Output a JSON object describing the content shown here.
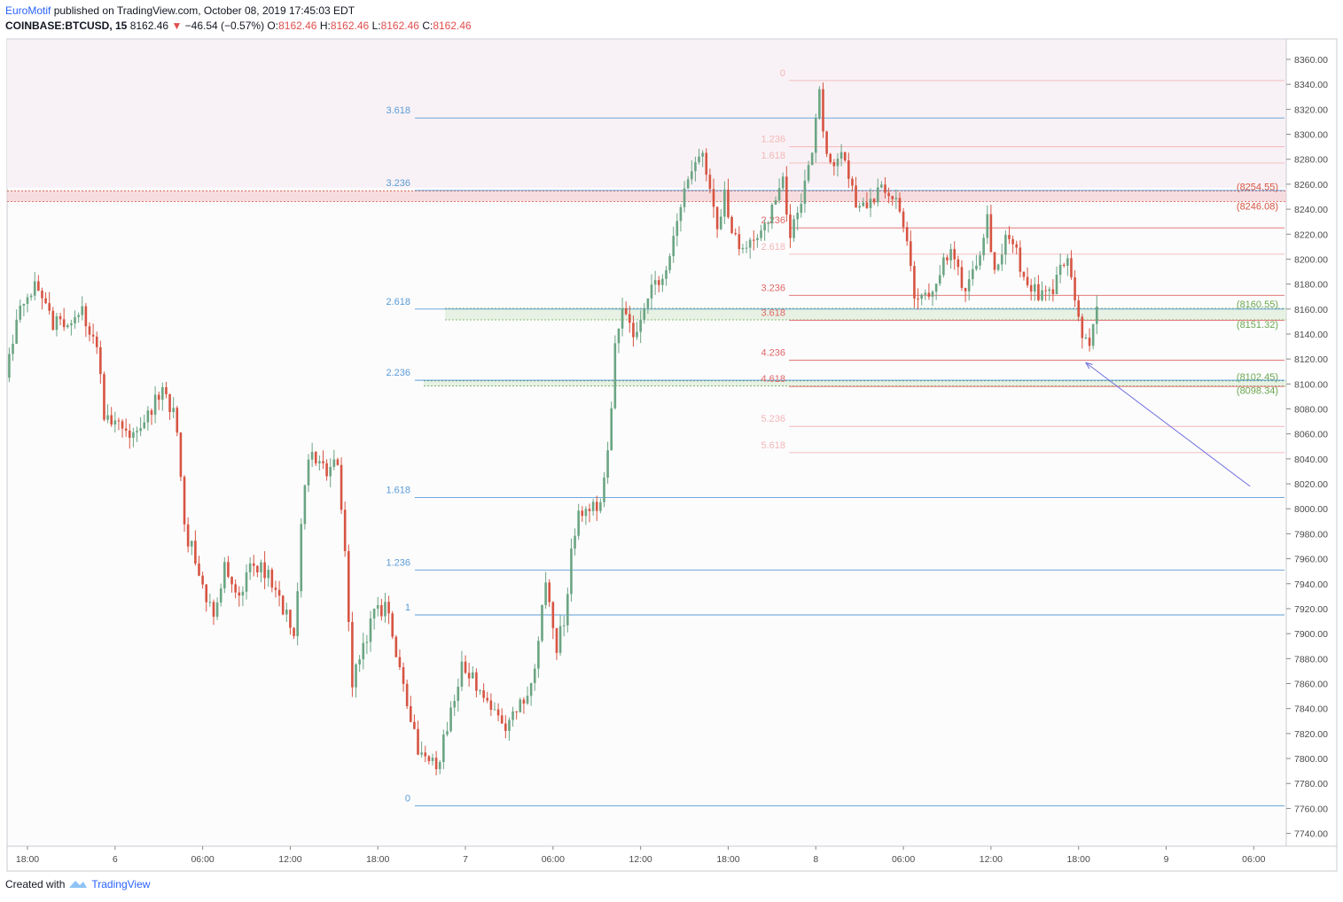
{
  "header": {
    "author": "EuroMotif",
    "published_text": "published on TradingView.com, October 08, 2019 17:45:03 EDT",
    "symbol": "COINBASE:BTCUSD, 15",
    "last": "8162.46",
    "change": "−46.54 (−0.57%)",
    "o_label": "O:",
    "o": "8162.46",
    "h_label": "H:",
    "h": "8162.46",
    "l_label": "L:",
    "l": "8162.46",
    "c_label": "C:",
    "c": "8162.46"
  },
  "footer": {
    "created_with": "Created with",
    "brand": "TradingView"
  },
  "colors": {
    "up": "#6ba583",
    "down": "#d75442",
    "fib_blue": "#5b9cd6",
    "fib_red": "#e06666",
    "fib_red_light": "#f4b6b6",
    "zone_red": "#f3c6cc",
    "zone_green": "#d9ead3",
    "arrow": "#6f6fe0",
    "top_zone": "#f8f2f6"
  },
  "chart_data": {
    "type": "candlestick",
    "ylim": [
      7730,
      8370
    ],
    "y_ticks": [
      "8360.00",
      "8340.00",
      "8320.00",
      "8300.00",
      "8280.00",
      "8260.00",
      "8240.00",
      "8220.00",
      "8200.00",
      "8180.00",
      "8160.00",
      "8140.00",
      "8120.00",
      "8100.00",
      "8080.00",
      "8060.00",
      "8040.00",
      "8020.00",
      "8000.00",
      "7980.00",
      "7960.00",
      "7940.00",
      "7920.00",
      "7900.00",
      "7880.00",
      "7860.00",
      "7840.00",
      "7820.00",
      "7800.00",
      "7780.00",
      "7760.00",
      "7740.00"
    ],
    "x_ticks": [
      {
        "label": "18:00",
        "t": 0
      },
      {
        "label": "6",
        "t": 24
      },
      {
        "label": "06:00",
        "t": 48
      },
      {
        "label": "12:00",
        "t": 72
      },
      {
        "label": "18:00",
        "t": 96
      },
      {
        "label": "7",
        "t": 120
      },
      {
        "label": "06:00",
        "t": 144
      },
      {
        "label": "12:00",
        "t": 168
      },
      {
        "label": "18:00",
        "t": 192
      },
      {
        "label": "8",
        "t": 216
      },
      {
        "label": "06:00",
        "t": 240
      },
      {
        "label": "12:00",
        "t": 264
      },
      {
        "label": "18:00",
        "t": 288
      },
      {
        "label": "9",
        "t": 312
      },
      {
        "label": "06:00",
        "t": 336
      }
    ],
    "x_range": [
      -6,
      350
    ],
    "fib_blue": [
      {
        "label": "3.618",
        "price": 8313
      },
      {
        "label": "3.236",
        "price": 8255
      },
      {
        "label": "2.618",
        "price": 8160
      },
      {
        "label": "2.236",
        "price": 8103
      },
      {
        "label": "1.618",
        "price": 8009
      },
      {
        "label": "1.236",
        "price": 7951
      },
      {
        "label": "1",
        "price": 7915
      },
      {
        "label": "0",
        "price": 7762
      }
    ],
    "fib_red": [
      {
        "label": "0",
        "price": 8343,
        "strong": false
      },
      {
        "label": "1.236",
        "price": 8290,
        "strong": false
      },
      {
        "label": "1.618",
        "price": 8277,
        "strong": false
      },
      {
        "label": "2.236",
        "price": 8225,
        "strong": true
      },
      {
        "label": "2.618",
        "price": 8204,
        "strong": false
      },
      {
        "label": "3.236",
        "price": 8171,
        "strong": true
      },
      {
        "label": "3.618",
        "price": 8151,
        "strong": true
      },
      {
        "label": "4.236",
        "price": 8119,
        "strong": true
      },
      {
        "label": "4.618",
        "price": 8098,
        "strong": true
      },
      {
        "label": "5.236",
        "price": 8066,
        "strong": false
      },
      {
        "label": "5.618",
        "price": 8045,
        "strong": false
      }
    ],
    "zones": [
      {
        "color": "red",
        "from": 8246.08,
        "to": 8254.55,
        "label_top": "(8254.55)",
        "label_bottom": "(8246.08)"
      },
      {
        "color": "green",
        "from": 8151.32,
        "to": 8160.55,
        "label_top": "(8160.55)",
        "label_bottom": "(8151.32)"
      },
      {
        "color": "green",
        "from": 8098.34,
        "to": 8102.45,
        "label_top": "(8102.45)",
        "label_bottom": "(8098.34)"
      }
    ],
    "anchors": [
      [
        -5,
        8105
      ],
      [
        -1,
        8165
      ],
      [
        3,
        8178
      ],
      [
        8,
        8150
      ],
      [
        12,
        8145
      ],
      [
        16,
        8160
      ],
      [
        20,
        8125
      ],
      [
        22,
        8078
      ],
      [
        26,
        8070
      ],
      [
        30,
        8060
      ],
      [
        34,
        8078
      ],
      [
        38,
        8092
      ],
      [
        42,
        8068
      ],
      [
        44,
        7985
      ],
      [
        48,
        7950
      ],
      [
        52,
        7910
      ],
      [
        55,
        7955
      ],
      [
        59,
        7925
      ],
      [
        62,
        7960
      ],
      [
        66,
        7950
      ],
      [
        70,
        7930
      ],
      [
        74,
        7895
      ],
      [
        76,
        7985
      ],
      [
        78,
        8045
      ],
      [
        82,
        8030
      ],
      [
        86,
        8035
      ],
      [
        88,
        7960
      ],
      [
        90,
        7860
      ],
      [
        93,
        7890
      ],
      [
        96,
        7920
      ],
      [
        100,
        7920
      ],
      [
        102,
        7880
      ],
      [
        105,
        7840
      ],
      [
        109,
        7800
      ],
      [
        113,
        7795
      ],
      [
        116,
        7822
      ],
      [
        120,
        7875
      ],
      [
        124,
        7860
      ],
      [
        128,
        7835
      ],
      [
        132,
        7825
      ],
      [
        136,
        7842
      ],
      [
        140,
        7870
      ],
      [
        143,
        7940
      ],
      [
        146,
        7890
      ],
      [
        148,
        7910
      ],
      [
        150,
        7965
      ],
      [
        152,
        8000
      ],
      [
        155,
        7995
      ],
      [
        158,
        8010
      ],
      [
        160,
        8040
      ],
      [
        162,
        8135
      ],
      [
        164,
        8165
      ],
      [
        166,
        8150
      ],
      [
        168,
        8135
      ],
      [
        172,
        8175
      ],
      [
        176,
        8195
      ],
      [
        180,
        8245
      ],
      [
        184,
        8275
      ],
      [
        186,
        8285
      ],
      [
        188,
        8250
      ],
      [
        190,
        8225
      ],
      [
        192,
        8250
      ],
      [
        196,
        8205
      ],
      [
        200,
        8215
      ],
      [
        204,
        8235
      ],
      [
        208,
        8262
      ],
      [
        210,
        8212
      ],
      [
        212,
        8240
      ],
      [
        216,
        8282
      ],
      [
        218,
        8334
      ],
      [
        220,
        8282
      ],
      [
        222,
        8280
      ],
      [
        224,
        8292
      ],
      [
        228,
        8245
      ],
      [
        232,
        8248
      ],
      [
        236,
        8255
      ],
      [
        240,
        8240
      ],
      [
        242,
        8210
      ],
      [
        244,
        8170
      ],
      [
        246,
        8165
      ],
      [
        250,
        8185
      ],
      [
        254,
        8205
      ],
      [
        258,
        8175
      ],
      [
        262,
        8210
      ],
      [
        264,
        8235
      ],
      [
        266,
        8190
      ],
      [
        270,
        8222
      ],
      [
        274,
        8185
      ],
      [
        278,
        8172
      ],
      [
        282,
        8175
      ],
      [
        286,
        8205
      ],
      [
        288,
        8170
      ],
      [
        290,
        8140
      ],
      [
        292,
        8128
      ],
      [
        294,
        8162
      ]
    ]
  },
  "annotation": {
    "type": "arrow",
    "from": {
      "t": 335,
      "price": 8018
    },
    "to": {
      "t": 290,
      "price": 8117
    }
  }
}
